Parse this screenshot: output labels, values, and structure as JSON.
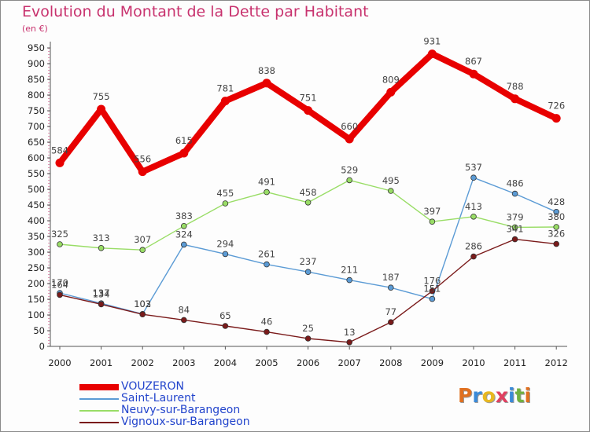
{
  "chart_data": {
    "type": "line",
    "title": "Evolution du Montant de la Dette par Habitant",
    "subtitle": "(en €)",
    "categories": [
      "2000",
      "2001",
      "2002",
      "2003",
      "2004",
      "2005",
      "2006",
      "2007",
      "2008",
      "2009",
      "2010",
      "2011",
      "2012"
    ],
    "ylim": [
      0,
      950
    ],
    "yticks": [
      0,
      50,
      100,
      150,
      200,
      250,
      300,
      350,
      400,
      450,
      500,
      550,
      600,
      650,
      700,
      750,
      800,
      850,
      900,
      950
    ],
    "grid": false,
    "legend_position": "bottom-left",
    "series": [
      {
        "name": "VOUZERON",
        "color": "#e80000",
        "values": [
          584,
          755,
          556,
          615,
          781,
          838,
          751,
          660,
          809,
          931,
          867,
          788,
          726
        ]
      },
      {
        "name": "Saint-Laurent",
        "color": "#5b9bd5",
        "values": [
          170,
          137,
          103,
          324,
          294,
          261,
          237,
          211,
          187,
          151,
          537,
          486,
          428
        ]
      },
      {
        "name": "Neuvy-sur-Barangeon",
        "color": "#99dd66",
        "values": [
          325,
          313,
          307,
          383,
          455,
          491,
          458,
          529,
          495,
          397,
          413,
          379,
          380
        ]
      },
      {
        "name": "Vignoux-sur-Barangeon",
        "color": "#7a1a1a",
        "values": [
          164,
          134,
          102,
          84,
          65,
          46,
          25,
          13,
          77,
          176,
          286,
          341,
          326
        ]
      }
    ]
  },
  "logo_text": "Proxiti",
  "logo_colors": [
    "#e07020",
    "#3a8ad8",
    "#e8b820",
    "#e04060",
    "#3a8ad8",
    "#70b040",
    "#e07020"
  ]
}
